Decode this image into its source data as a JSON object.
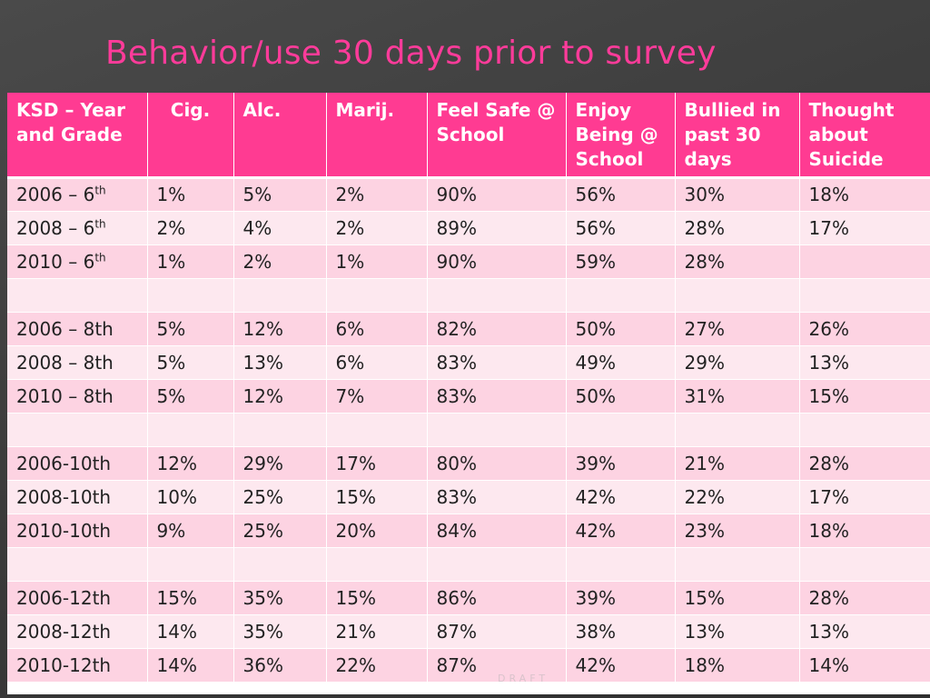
{
  "title": "Behavior/use 30 days prior to survey",
  "watermark": "DRAFT",
  "colors": {
    "header_bg": "#ff3b92",
    "row_odd": "#fdd3e2",
    "row_even": "#fde8ef",
    "title": "#ff3b9a"
  },
  "table": {
    "headers": [
      "KSD – Year and Grade",
      "Cig.",
      "Alc.",
      "Marij.",
      "Feel Safe @ School",
      "Enjoy Being @ School",
      "Bullied in past 30 days",
      "Thought about Suicide"
    ],
    "rows": [
      {
        "year": "2006 – 6",
        "sup": "th",
        "cells": [
          "1%",
          "5%",
          "2%",
          "90%",
          "56%",
          "30%",
          "18%"
        ]
      },
      {
        "year": "2008 – 6",
        "sup": "th",
        "cells": [
          "2%",
          "4%",
          "2%",
          "89%",
          "56%",
          "28%",
          "17%"
        ]
      },
      {
        "year": "2010 – 6",
        "sup": "th",
        "cells": [
          "1%",
          "2%",
          "1%",
          "90%",
          "59%",
          "28%",
          ""
        ]
      },
      {
        "year": "",
        "sup": "",
        "cells": [
          "",
          "",
          "",
          "",
          "",
          "",
          ""
        ]
      },
      {
        "year": "2006 – 8th",
        "sup": "",
        "cells": [
          "5%",
          "12%",
          "6%",
          "82%",
          "50%",
          "27%",
          "26%"
        ]
      },
      {
        "year": "2008 – 8th",
        "sup": "",
        "cells": [
          "5%",
          "13%",
          "6%",
          "83%",
          "49%",
          "29%",
          "13%"
        ]
      },
      {
        "year": "2010 – 8th",
        "sup": "",
        "cells": [
          "5%",
          "12%",
          "7%",
          "83%",
          "50%",
          "31%",
          "15%"
        ]
      },
      {
        "year": "",
        "sup": "",
        "cells": [
          "",
          "",
          "",
          "",
          "",
          "",
          ""
        ]
      },
      {
        "year": "2006-10th",
        "sup": "",
        "cells": [
          "12%",
          "29%",
          "17%",
          "80%",
          "39%",
          "21%",
          "28%"
        ]
      },
      {
        "year": "2008-10th",
        "sup": "",
        "cells": [
          "10%",
          "25%",
          "15%",
          "83%",
          "42%",
          "22%",
          "17%"
        ]
      },
      {
        "year": "2010-10th",
        "sup": "",
        "cells": [
          "9%",
          "25%",
          "20%",
          "84%",
          "42%",
          "23%",
          "18%"
        ]
      },
      {
        "year": "",
        "sup": "",
        "cells": [
          "",
          "",
          "",
          "",
          "",
          "",
          ""
        ]
      },
      {
        "year": "2006-12th",
        "sup": "",
        "cells": [
          "15%",
          "35%",
          "15%",
          "86%",
          "39%",
          "15%",
          "28%"
        ]
      },
      {
        "year": "2008-12th",
        "sup": "",
        "cells": [
          "14%",
          "35%",
          "21%",
          "87%",
          "38%",
          "13%",
          "13%"
        ]
      },
      {
        "year": "2010-12th",
        "sup": "",
        "cells": [
          "14%",
          "36%",
          "22%",
          "87%",
          "42%",
          "18%",
          "14%"
        ]
      }
    ]
  }
}
